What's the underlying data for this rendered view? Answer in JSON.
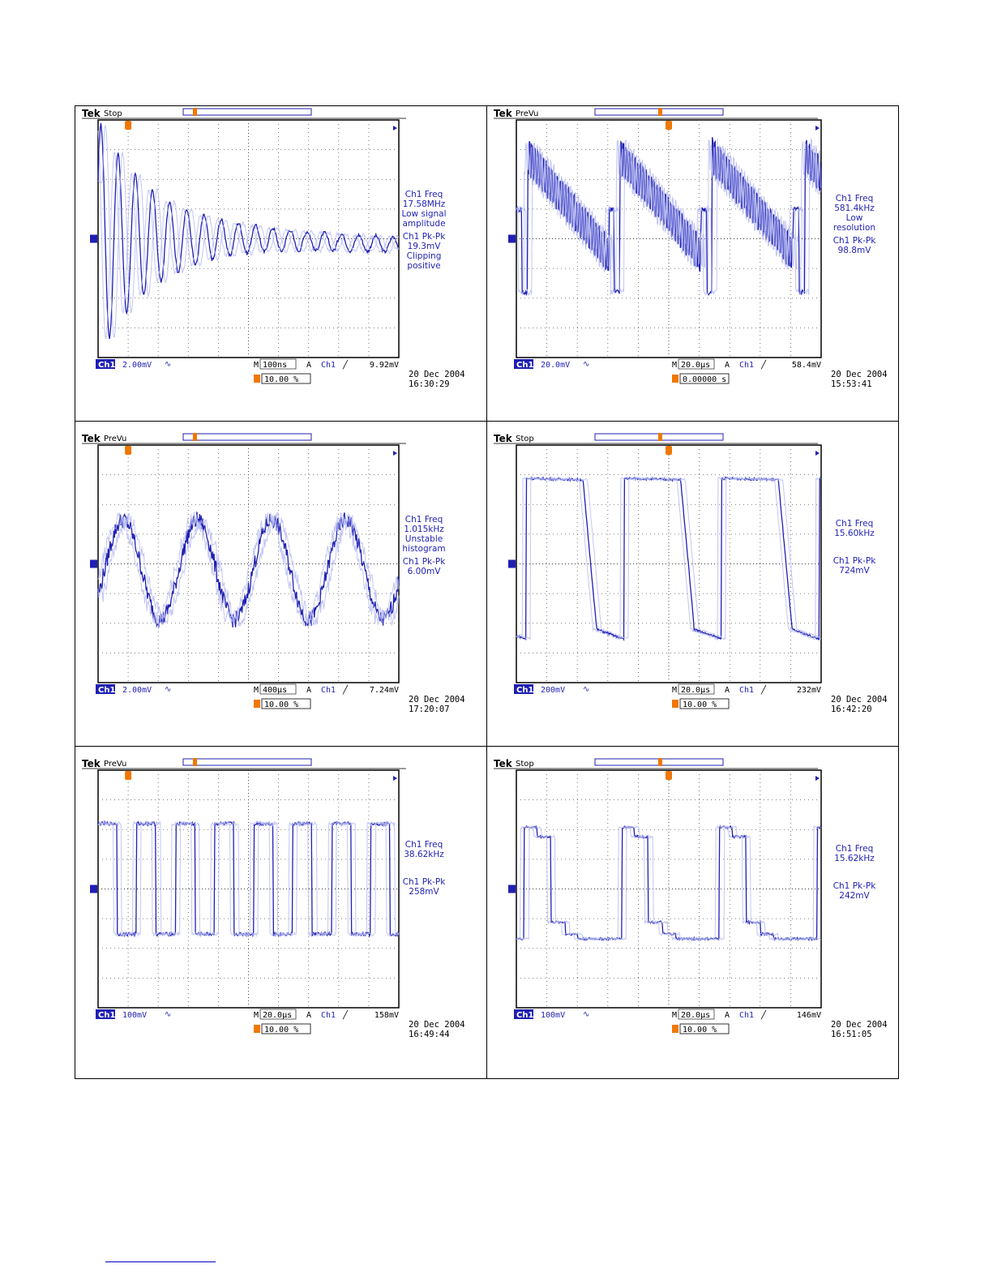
{
  "panels": [
    {
      "tek": "Tek",
      "state": "Stop",
      "measurements": [
        "Ch1 Freq",
        "17.58MHz",
        "Low signal",
        "amplitude",
        "Ch1 Pk-Pk",
        "19.3mV",
        "Clipping",
        "positive"
      ],
      "channel": "Ch1",
      "scale": "2.00mV",
      "timebase_label": "M",
      "timebase": "100ns",
      "trigger_mode": "A",
      "trigger_source": "Ch1",
      "trigger_level": "9.92mV",
      "trigger_position": "10.00 %",
      "date": "20 Dec  2004",
      "time": "16:30:29",
      "waveform": "damped"
    },
    {
      "tek": "Tek",
      "state": "PreVu",
      "measurements": [
        "Ch1 Freq",
        "581.4kHz",
        "Low",
        "resolution",
        "Ch1 Pk-Pk",
        "98.8mV"
      ],
      "channel": "Ch1",
      "scale": "20.0mV",
      "timebase_label": "M",
      "timebase": "20.0µs",
      "trigger_mode": "A",
      "trigger_source": "Ch1",
      "trigger_level": "58.4mV",
      "trigger_position": "0.00000 s",
      "date": "20 Dec  2004",
      "time": "15:53:41",
      "waveform": "ramp-burst"
    },
    {
      "tek": "Tek",
      "state": "PreVu",
      "measurements": [
        "Ch1 Freq",
        "1.015kHz",
        "Unstable",
        "histogram",
        "Ch1 Pk-Pk",
        "6.00mV"
      ],
      "channel": "Ch1",
      "scale": "2.00mV",
      "timebase_label": "M",
      "timebase": "400µs",
      "trigger_mode": "A",
      "trigger_source": "Ch1",
      "trigger_level": "7.24mV",
      "trigger_position": "10.00 %",
      "date": "20 Dec  2004",
      "time": "17:20:07",
      "waveform": "noisy-sine"
    },
    {
      "tek": "Tek",
      "state": "Stop",
      "measurements": [
        "Ch1 Freq",
        "15.60kHz",
        "Ch1 Pk-Pk",
        "724mV"
      ],
      "channel": "Ch1",
      "scale": "200mV",
      "timebase_label": "M",
      "timebase": "20.0µs",
      "trigger_mode": "A",
      "trigger_source": "Ch1",
      "trigger_level": "232mV",
      "trigger_position": "10.00 %",
      "date": "20 Dec  2004",
      "time": "16:42:20",
      "waveform": "square"
    },
    {
      "tek": "Tek",
      "state": "PreVu",
      "measurements": [
        "Ch1 Freq",
        "38.62kHz",
        "Ch1 Pk-Pk",
        "258mV"
      ],
      "channel": "Ch1",
      "scale": "100mV",
      "timebase_label": "M",
      "timebase": "20.0µs",
      "trigger_mode": "A",
      "trigger_source": "Ch1",
      "trigger_level": "158mV",
      "trigger_position": "10.00 %",
      "date": "20 Dec  2004",
      "time": "16:49:44",
      "waveform": "square-jitter"
    },
    {
      "tek": "Tek",
      "state": "Stop",
      "measurements": [
        "Ch1 Freq",
        "15.62kHz",
        "Ch1 Pk-Pk",
        "242mV"
      ],
      "channel": "Ch1",
      "scale": "100mV",
      "timebase_label": "M",
      "timebase": "20.0µs",
      "trigger_mode": "A",
      "trigger_source": "Ch1",
      "trigger_level": "146mV",
      "trigger_position": "10.00 %",
      "date": "20 Dec  2004",
      "time": "16:51:05",
      "waveform": "square-steps"
    }
  ],
  "colors": {
    "trace": "#1f1fb4",
    "trace_faint": "#b4b8f0",
    "trigger_marker": "#f07800"
  }
}
